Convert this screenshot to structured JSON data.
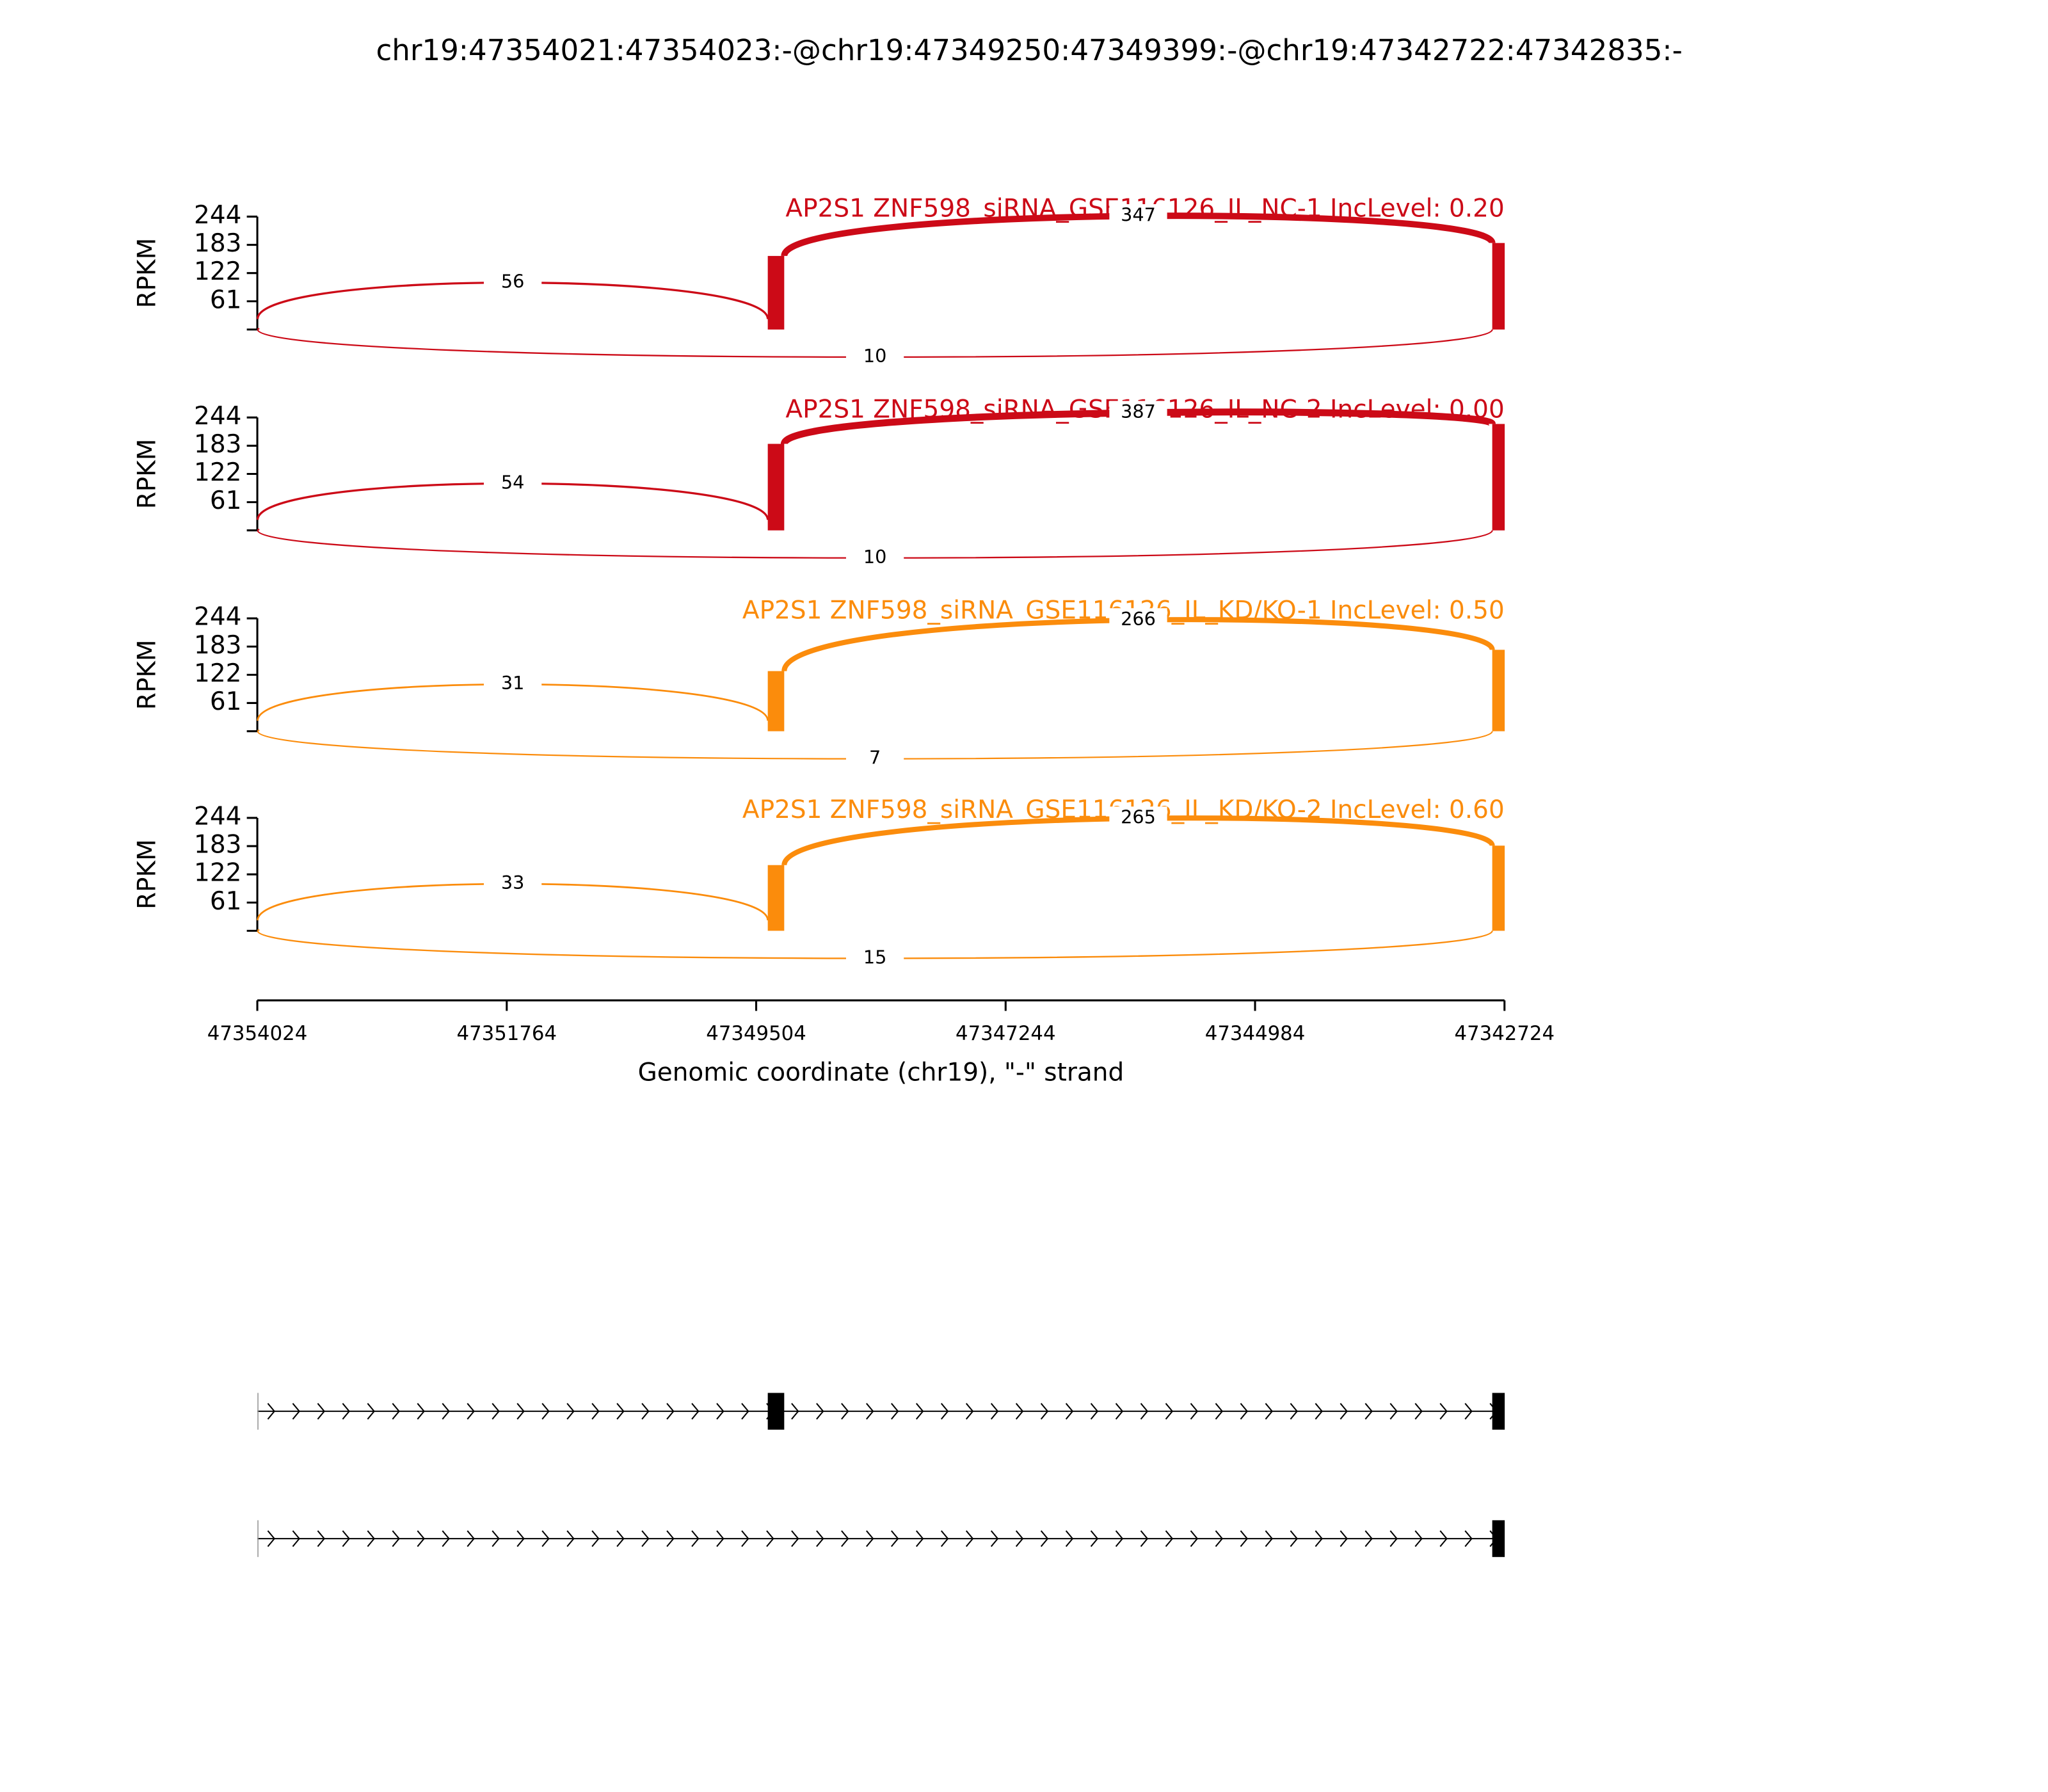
{
  "chart_data": {
    "type": "sashimi",
    "title": "chr19:47354021:47354023:-@chr19:47349250:47349399:-@chr19:47342722:47342835:-",
    "ylabel": "RPKM",
    "ylim": [
      0,
      244
    ],
    "yticks": [
      61,
      122,
      183,
      244
    ],
    "xlim": [
      47354024,
      47342724
    ],
    "xticks": [
      47354024,
      47351764,
      47349504,
      47347244,
      47344984,
      47342724
    ],
    "xlabel": "Genomic coordinate (chr19), \"-\" strand",
    "exons": [
      [
        47354021,
        47354023
      ],
      [
        47349250,
        47349399
      ],
      [
        47342722,
        47342835
      ]
    ],
    "panels": [
      {
        "name": "AP2S1 ZNF598_siRNA_GSE116126_IL_NC-1 IncLevel: 0.20",
        "color": "#cc0a17",
        "coverage": [
          3,
          159,
          187
        ],
        "junctions": [
          56,
          347,
          10
        ]
      },
      {
        "name": "AP2S1 ZNF598_siRNA_GSE116126_IL_NC-2 IncLevel: 0.00",
        "color": "#cc0a17",
        "coverage": [
          3,
          187,
          230
        ],
        "junctions": [
          54,
          387,
          10
        ]
      },
      {
        "name": "AP2S1 ZNF598_siRNA_GSE116126_IL_KD/KO-1 IncLevel: 0.50",
        "color": "#fb8c0c",
        "coverage": [
          3,
          130,
          176
        ],
        "junctions": [
          31,
          266,
          7
        ]
      },
      {
        "name": "AP2S1 ZNF598_siRNA_GSE116126_IL_KD/KO-2 IncLevel: 0.60",
        "color": "#fb8c0c",
        "coverage": [
          3,
          142,
          184
        ],
        "junctions": [
          33,
          265,
          15
        ]
      }
    ],
    "transcripts": [
      {
        "exons": [
          [
            47354021,
            47354023
          ],
          [
            47349250,
            47349399
          ],
          [
            47342722,
            47342835
          ]
        ]
      },
      {
        "exons": [
          [
            47354021,
            47354023
          ],
          [
            47342722,
            47342835
          ]
        ]
      }
    ]
  }
}
